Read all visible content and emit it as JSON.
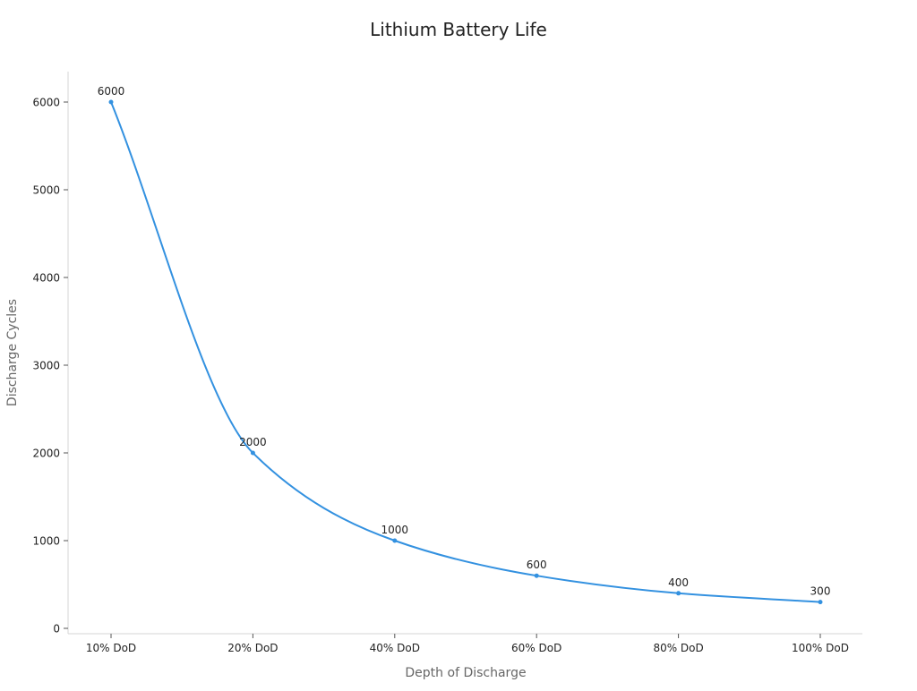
{
  "chart_data": {
    "type": "line",
    "title": "Lithium Battery Life",
    "xlabel": "Depth of Discharge",
    "ylabel": "Discharge Cycles",
    "categories": [
      "10% DoD",
      "20% DoD",
      "40% DoD",
      "60% DoD",
      "80% DoD",
      "100% DoD"
    ],
    "series": [
      {
        "name": "Discharge Cycles",
        "values": [
          6000,
          2000,
          1000,
          600,
          400,
          300
        ],
        "color": "#3391e0"
      }
    ],
    "yticks": [
      0,
      1000,
      2000,
      3000,
      4000,
      5000,
      6000
    ],
    "ylim": [
      0,
      6000
    ],
    "grid": false,
    "data_labels": true
  }
}
